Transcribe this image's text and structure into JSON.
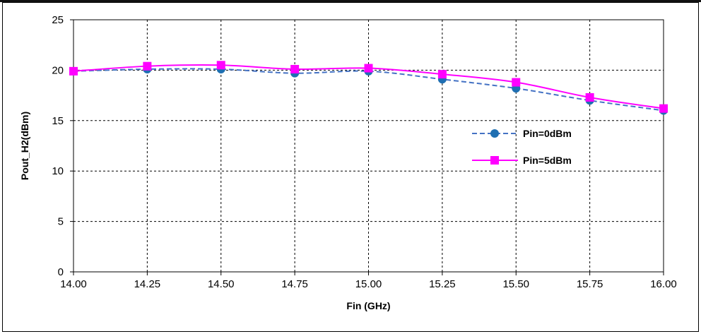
{
  "chart_data": {
    "type": "line",
    "title": "",
    "xlabel": "Fin (GHz)",
    "ylabel": "Pout_H2(dBm)",
    "xlim": [
      14.0,
      16.0
    ],
    "ylim": [
      0,
      25
    ],
    "x_ticks": [
      "14.00",
      "14.25",
      "14.50",
      "14.75",
      "15.00",
      "15.25",
      "15.50",
      "15.75",
      "16.00"
    ],
    "y_ticks": [
      "0",
      "5",
      "10",
      "15",
      "20",
      "25"
    ],
    "grid": true,
    "legend_position": "right",
    "x": [
      14.0,
      14.25,
      14.5,
      14.75,
      15.0,
      15.25,
      15.5,
      15.75,
      16.0
    ],
    "series": [
      {
        "name": "Pin=0dBm",
        "values": [
          19.9,
          20.1,
          20.1,
          19.7,
          19.9,
          19.1,
          18.2,
          17.0,
          16.0
        ],
        "color": "#4472C4",
        "line_style": "dashed",
        "marker": "circle",
        "marker_color": "#1F6FB2"
      },
      {
        "name": "Pin=5dBm",
        "values": [
          19.9,
          20.4,
          20.5,
          20.1,
          20.2,
          19.6,
          18.8,
          17.3,
          16.2
        ],
        "color": "#FF00FF",
        "line_style": "solid",
        "marker": "square",
        "marker_color": "#FF00FF"
      }
    ]
  }
}
